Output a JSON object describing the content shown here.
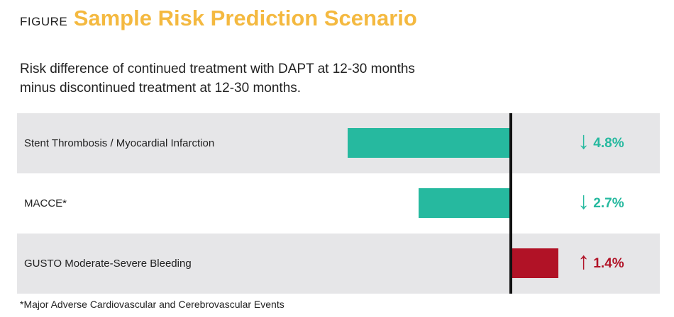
{
  "header": {
    "figure_label": "FIGURE",
    "title": "Sample Risk Prediction Scenario",
    "subtitle_line1": "Risk difference of continued treatment with DAPT at 12-30 months",
    "subtitle_line2": "minus discontinued treatment at 12-30 months."
  },
  "colors": {
    "title": "#f4b940",
    "decrease": "#26b99f",
    "increase": "#b11226",
    "row_shade": "#e6e6e8",
    "zero_line": "#111111"
  },
  "icons": {
    "decrease": "arrow-down-icon",
    "increase": "arrow-up-icon"
  },
  "chart_data": {
    "type": "bar",
    "orientation": "horizontal",
    "title": "Sample Risk Prediction Scenario",
    "subtitle": "Risk difference of continued treatment with DAPT at 12-30 months minus discontinued treatment at 12-30 months.",
    "categories": [
      "Stent Thrombosis / Myocardial Infarction",
      "MACCE*",
      "GUSTO Moderate-Severe Bleeding"
    ],
    "values": [
      -4.8,
      -2.7,
      1.4
    ],
    "value_labels": [
      "4.8%",
      "2.7%",
      "1.4%"
    ],
    "units": "%",
    "xlim": [
      -5.2,
      4.0
    ],
    "zero_line": true,
    "grid": false
  },
  "footnote": "*Major Adverse Cardiovascular and Cerebrovascular Events"
}
